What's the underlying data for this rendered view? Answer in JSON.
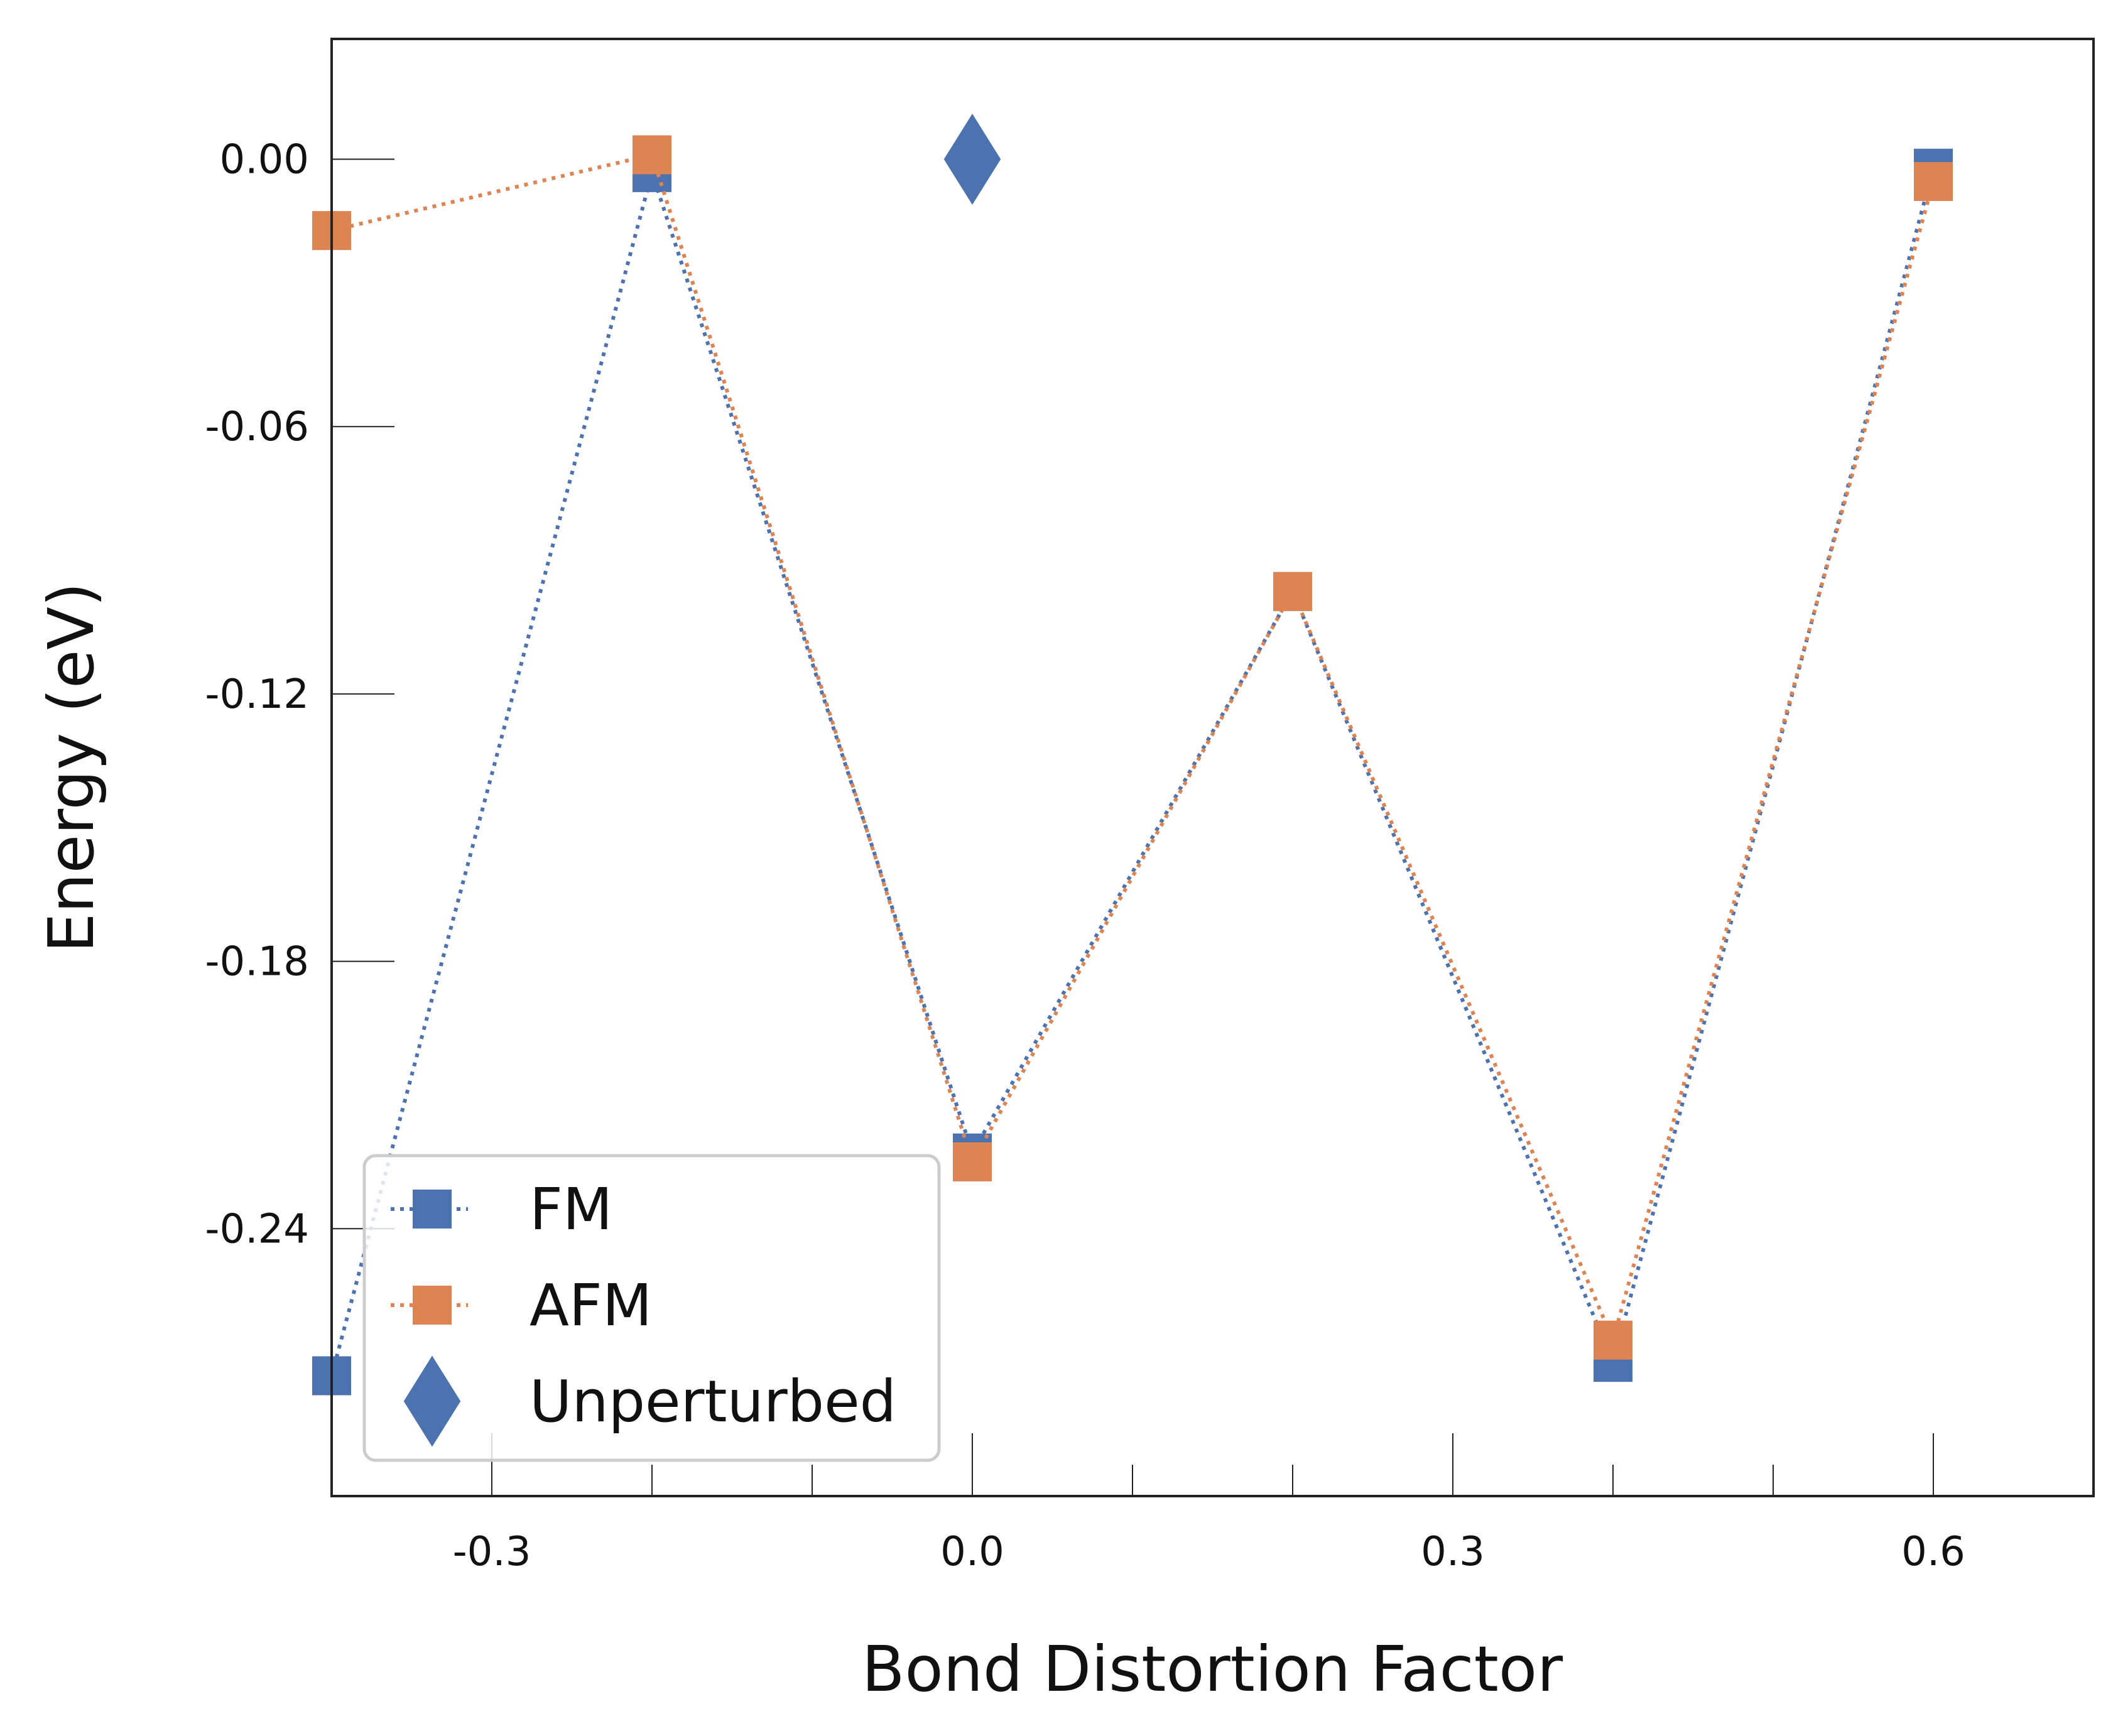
{
  "chart_data": {
    "type": "line",
    "title": "",
    "xlabel": "Bond Distortion Factor",
    "ylabel": "Energy (eV)",
    "xlim": [
      -0.4,
      0.7
    ],
    "ylim": [
      -0.3,
      0.027
    ],
    "xticks": [
      -0.3,
      0.0,
      0.3,
      0.6
    ],
    "xtick_labels": [
      "-0.3",
      "0.0",
      "0.3",
      "0.6"
    ],
    "xticks_minor": [
      -0.4,
      -0.2,
      -0.1,
      0.1,
      0.2,
      0.4,
      0.5
    ],
    "yticks": [
      0.0,
      -0.06,
      -0.12,
      -0.18,
      -0.24
    ],
    "ytick_labels": [
      "0.00",
      "-0.06",
      "-0.12",
      "-0.18",
      "-0.24"
    ],
    "grid": false,
    "legend_position": "bottom-left",
    "series": [
      {
        "name": "FM",
        "color": "#4C72B0",
        "marker": "square",
        "linestyle": "dotted",
        "x": [
          -0.4,
          -0.2,
          0.0,
          0.2,
          0.4,
          0.6
        ],
        "y": [
          -0.273,
          -0.003,
          -0.223,
          -0.097,
          -0.27,
          -0.002
        ]
      },
      {
        "name": "AFM",
        "color": "#DD8452",
        "marker": "square",
        "linestyle": "dotted",
        "x": [
          -0.4,
          -0.2,
          0.0,
          0.2,
          0.4,
          0.6
        ],
        "y": [
          -0.016,
          0.001,
          -0.225,
          -0.097,
          -0.265,
          -0.005
        ]
      },
      {
        "name": "Unperturbed",
        "color": "#4C72B0",
        "marker": "diamond",
        "linestyle": "none",
        "x": [
          0.0
        ],
        "y": [
          0.0
        ]
      }
    ]
  }
}
